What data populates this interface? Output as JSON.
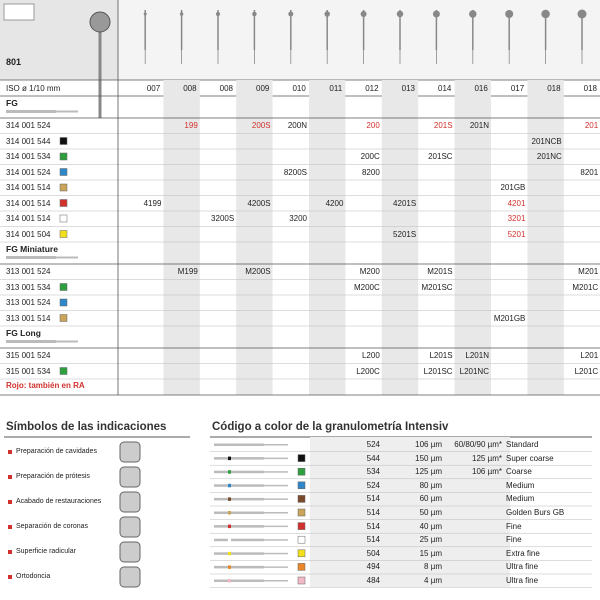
{
  "header": {
    "series": "801",
    "iso_label": "ISO ø 1/10 mm",
    "sizes": [
      "007",
      "008",
      "008",
      "009",
      "010",
      "011",
      "012",
      "013",
      "014",
      "016",
      "017",
      "018",
      "018"
    ]
  },
  "sections": [
    {
      "title": "FG",
      "rows": [
        {
          "code": "314 001 524",
          "cells": [
            null,
            {
              "text": "199",
              "color": "#d0312d"
            },
            null,
            {
              "text": "200S",
              "color": "#d0312d"
            },
            "200N",
            null,
            {
              "text": "200",
              "color": "#d0312d"
            },
            null,
            {
              "text": "201S",
              "color": "#d0312d"
            },
            "201N",
            null,
            null,
            {
              "text": "201",
              "color": "#d0312d"
            }
          ]
        },
        {
          "code": "314 001 544",
          "swatch": "#111111",
          "cells": [
            null,
            null,
            null,
            null,
            null,
            null,
            null,
            null,
            null,
            null,
            null,
            "201NCB",
            null
          ]
        },
        {
          "code": "314 001 534",
          "swatch": "#2e9e3e",
          "cells": [
            null,
            null,
            null,
            null,
            null,
            null,
            "200C",
            null,
            "201SC",
            null,
            null,
            "201NC",
            null
          ]
        },
        {
          "code": "314 001 524",
          "swatch": "#2f86c9",
          "cells": [
            null,
            null,
            null,
            null,
            "8200S",
            null,
            "8200",
            null,
            null,
            null,
            null,
            null,
            "8201"
          ]
        },
        {
          "code": "314 001 514",
          "swatch": "#c9a45a",
          "cells": [
            null,
            null,
            null,
            null,
            null,
            null,
            null,
            null,
            null,
            null,
            "201GB",
            null,
            null
          ]
        },
        {
          "code": "314 001 514",
          "swatch": "#d0312d",
          "cells": [
            "4199",
            null,
            null,
            "4200S",
            null,
            "4200",
            null,
            "4201S",
            null,
            null,
            {
              "text": "4201",
              "color": "#d0312d"
            },
            null,
            null
          ]
        },
        {
          "code": "314 001 514",
          "swatch": "#ffffff",
          "cells": [
            null,
            null,
            "3200S",
            null,
            "3200",
            null,
            null,
            null,
            null,
            null,
            {
              "text": "3201",
              "color": "#d0312d"
            },
            null,
            null
          ]
        },
        {
          "code": "314 001 504",
          "swatch": "#f2e01c",
          "cells": [
            null,
            null,
            null,
            null,
            null,
            null,
            null,
            "5201S",
            null,
            null,
            {
              "text": "5201",
              "color": "#d0312d"
            },
            null,
            null
          ]
        }
      ]
    },
    {
      "title": "FG Miniature",
      "rows": [
        {
          "code": "313 001 524",
          "cells": [
            null,
            "M199",
            null,
            "M200S",
            null,
            null,
            "M200",
            null,
            "M201S",
            null,
            null,
            null,
            "M201"
          ]
        },
        {
          "code": "313 001 534",
          "swatch": "#2e9e3e",
          "cells": [
            null,
            null,
            null,
            null,
            null,
            null,
            "M200C",
            null,
            "M201SC",
            null,
            null,
            null,
            "M201C"
          ]
        },
        {
          "code": "313 001 524",
          "swatch": "#2f86c9",
          "cells": [
            null,
            null,
            null,
            null,
            null,
            null,
            null,
            null,
            null,
            null,
            null,
            null,
            null
          ]
        },
        {
          "code": "313 001 514",
          "swatch": "#c9a45a",
          "cells": [
            null,
            null,
            null,
            null,
            null,
            null,
            null,
            null,
            null,
            null,
            "M201GB",
            null,
            null
          ]
        }
      ]
    },
    {
      "title": "FG Long",
      "rows": [
        {
          "code": "315 001 524",
          "cells": [
            null,
            null,
            null,
            null,
            null,
            null,
            "L200",
            null,
            "L201S",
            "L201N",
            null,
            null,
            "L201"
          ]
        },
        {
          "code": "315 001 534",
          "swatch": "#2e9e3e",
          "cells": [
            null,
            null,
            null,
            null,
            null,
            null,
            "L200C",
            null,
            "L201SC",
            "L201NC",
            null,
            null,
            "L201C"
          ]
        }
      ]
    }
  ],
  "note": "Rojo: también en RA",
  "symbols": {
    "title": "Símbolos de las indicaciones",
    "items": [
      "Preparación de cavidades",
      "Preparación de prótesis",
      "Acabado de restauraciones",
      "Separación de coronas",
      "Superficie radicular",
      "Ortodoncia"
    ]
  },
  "grit": {
    "title": "Código a color de la granulometría Intensiv",
    "rows": [
      {
        "code": "524",
        "size": "106 µm",
        "extra": "60/80/90 µm*",
        "name": "Standard"
      },
      {
        "code": "544",
        "size": "150 µm",
        "extra": "125 µm*",
        "name": "Super coarse",
        "swatch": "#111111"
      },
      {
        "code": "534",
        "size": "125 µm",
        "extra": "106 µm*",
        "name": "Coarse",
        "swatch": "#2e9e3e"
      },
      {
        "code": "524",
        "size": "80 µm",
        "name": "Medium",
        "swatch": "#2f86c9"
      },
      {
        "code": "514",
        "size": "60 µm",
        "name": "Medium",
        "swatch": "#7a4a2a"
      },
      {
        "code": "514",
        "size": "50 µm",
        "name": "Golden Burs GB",
        "swatch": "#c9a45a"
      },
      {
        "code": "514",
        "size": "40 µm",
        "name": "Fine",
        "swatch": "#d0312d"
      },
      {
        "code": "514",
        "size": "25 µm",
        "name": "Fine",
        "swatch": "#ffffff"
      },
      {
        "code": "504",
        "size": "15 µm",
        "name": "Extra fine",
        "swatch": "#f2e01c"
      },
      {
        "code": "494",
        "size": "8 µm",
        "name": "Ultra fine",
        "swatch": "#e8872a"
      },
      {
        "code": "484",
        "size": "4 µm",
        "name": "Ultra fine",
        "swatch": "#f2b8c6"
      }
    ]
  }
}
